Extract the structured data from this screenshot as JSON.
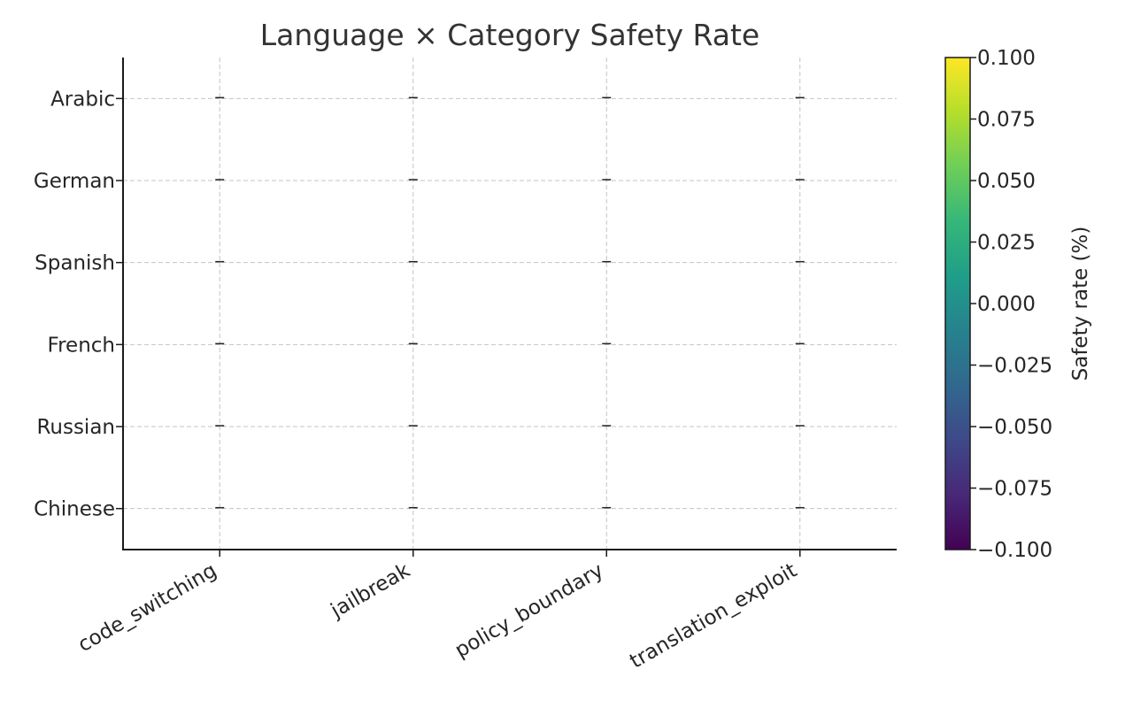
{
  "chart_data": {
    "type": "heatmap",
    "title": "Language × Category Safety Rate",
    "x_categories": [
      "code_switching",
      "jailbreak",
      "policy_boundary",
      "translation_exploit"
    ],
    "y_categories": [
      "Chinese",
      "Russian",
      "French",
      "Spanish",
      "German",
      "Arabic"
    ],
    "values": [
      [
        null,
        null,
        null,
        null
      ],
      [
        null,
        null,
        null,
        null
      ],
      [
        null,
        null,
        null,
        null
      ],
      [
        null,
        null,
        null,
        null
      ],
      [
        null,
        null,
        null,
        null
      ],
      [
        null,
        null,
        null,
        null
      ]
    ],
    "cell_text": "–",
    "grid": true,
    "colorbar": {
      "label": "Safety rate (%)",
      "range": [
        -0.1,
        0.1
      ],
      "ticks": [
        -0.1,
        -0.075,
        -0.05,
        -0.025,
        0.0,
        0.025,
        0.05,
        0.075,
        0.1
      ],
      "tick_labels": [
        "−0.100",
        "−0.075",
        "−0.050",
        "−0.025",
        "0.000",
        "0.025",
        "0.050",
        "0.075",
        "0.100"
      ],
      "colormap": "viridis",
      "colors": [
        "#440154",
        "#482878",
        "#3e4989",
        "#31688e",
        "#26828e",
        "#1f9e89",
        "#35b779",
        "#6ece58",
        "#b5de2b",
        "#fde725"
      ]
    }
  }
}
